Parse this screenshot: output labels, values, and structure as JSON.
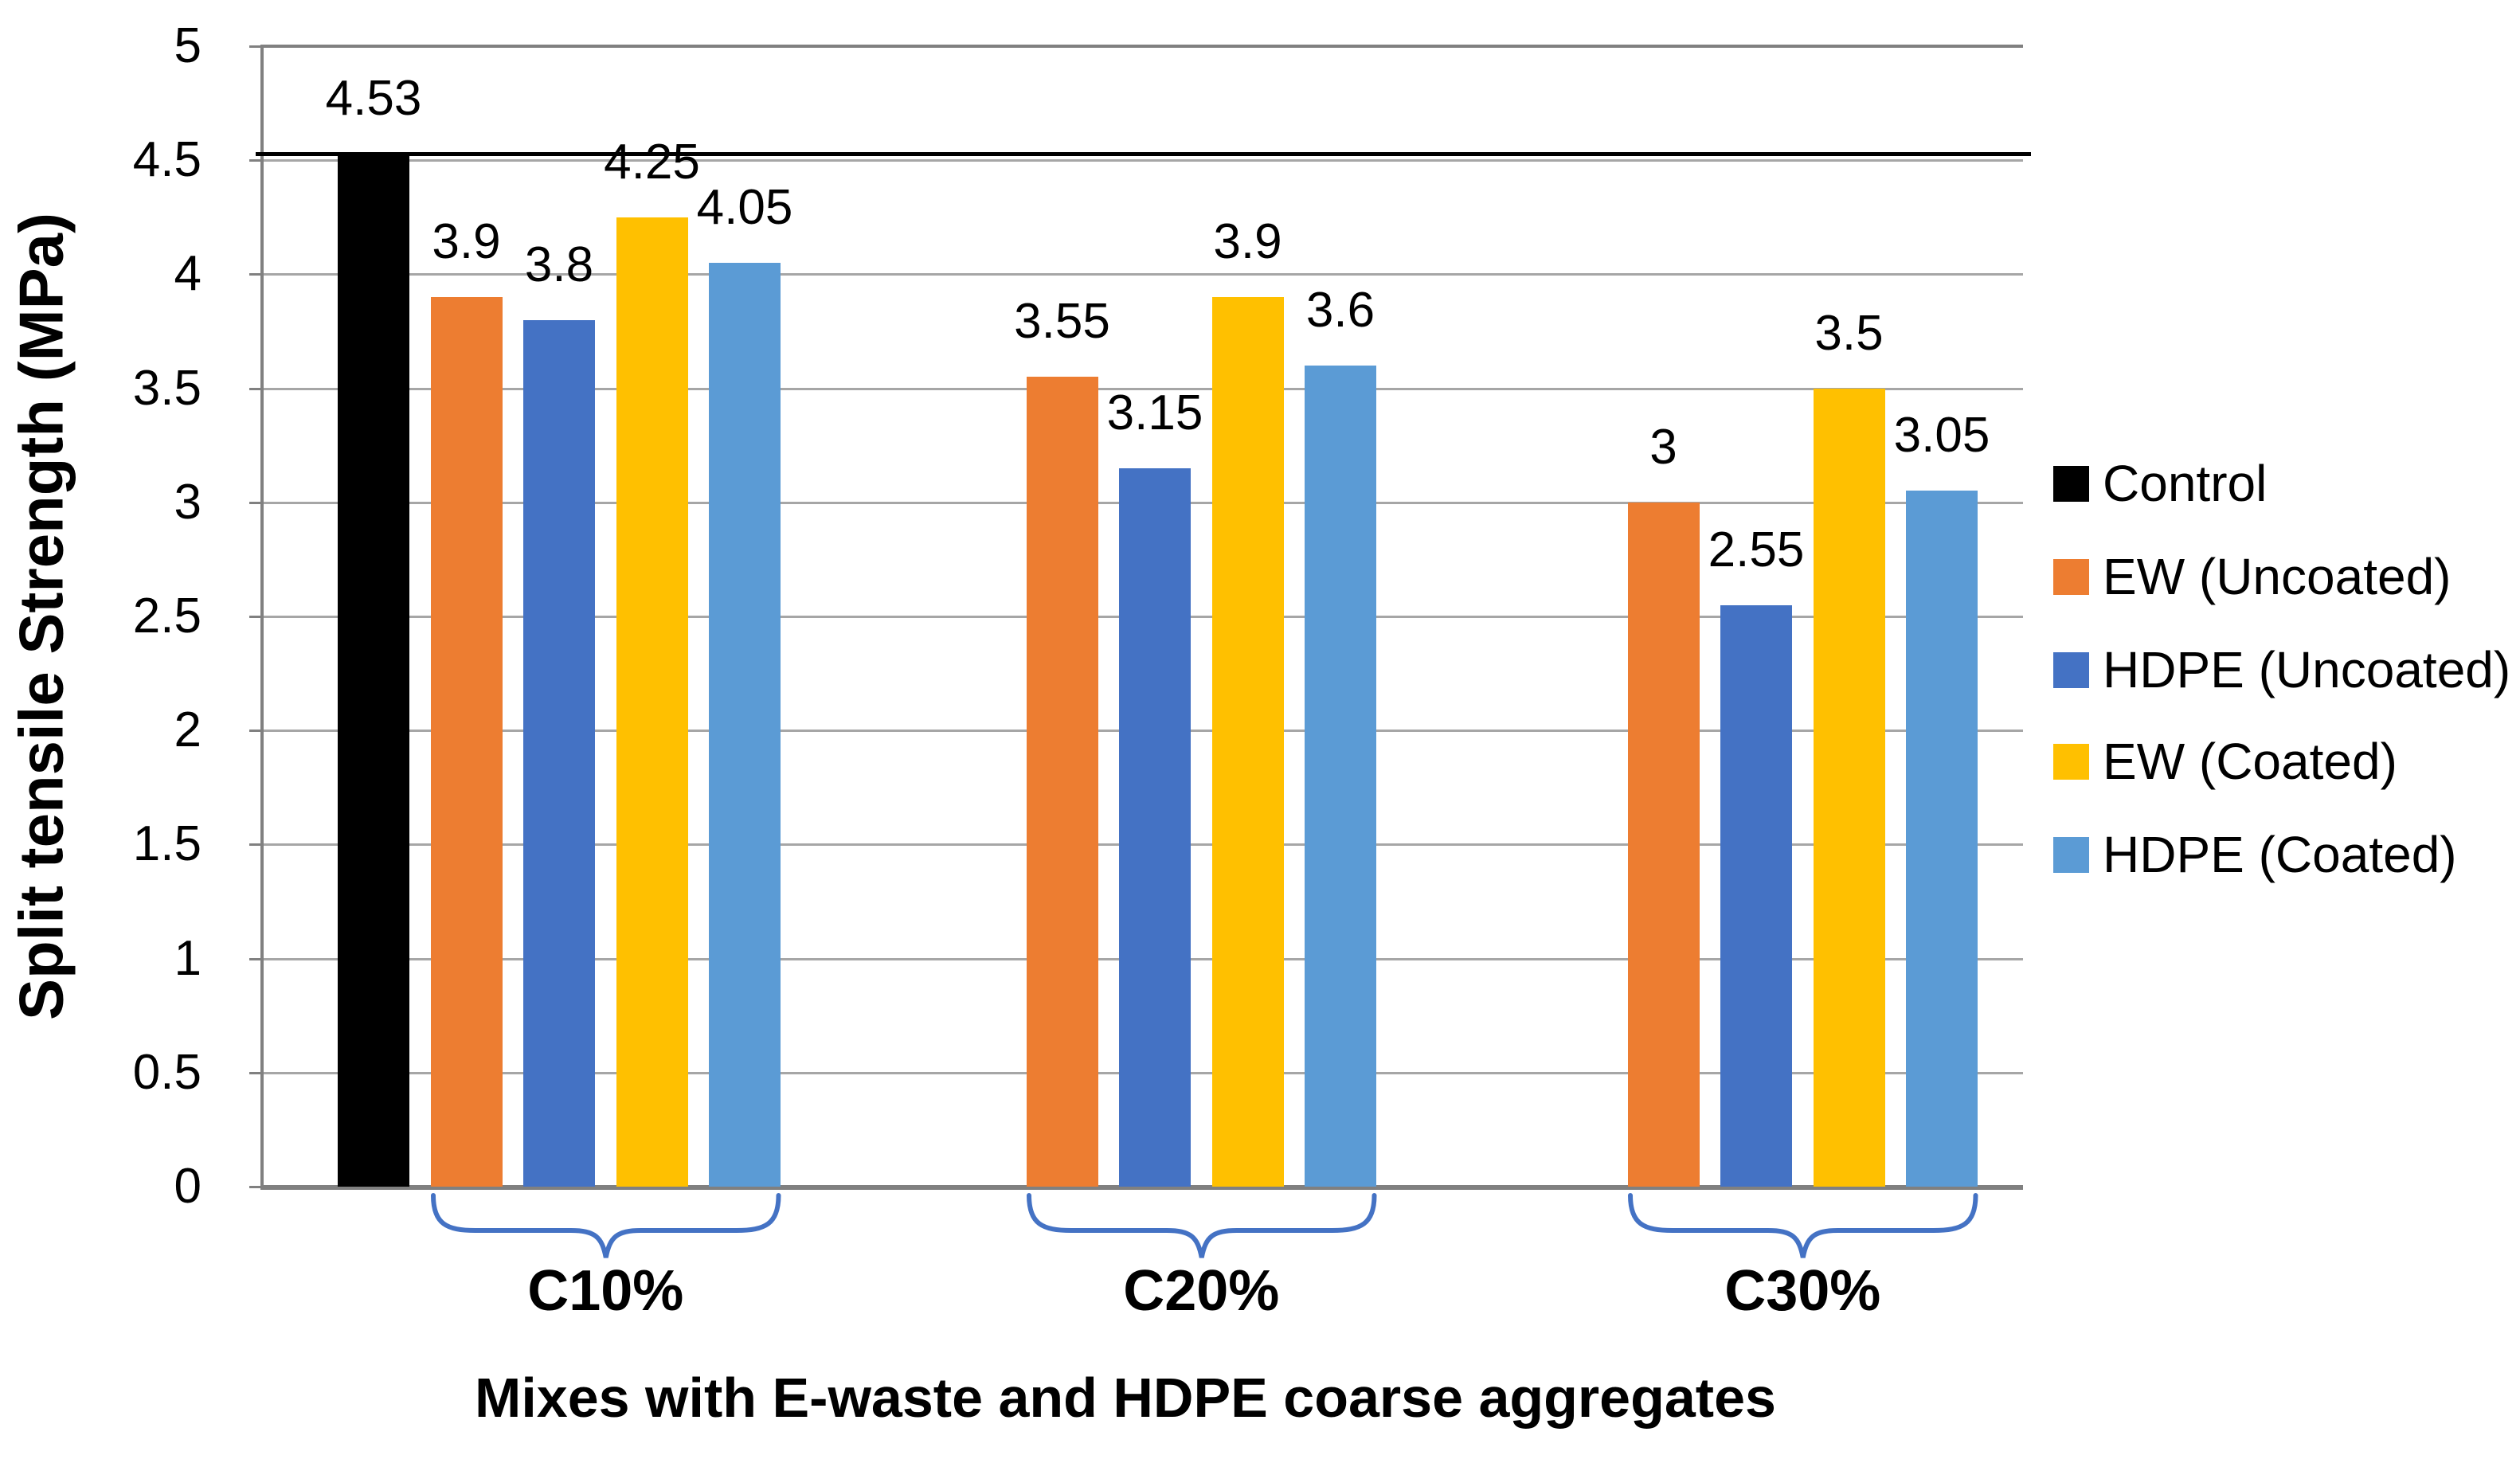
{
  "chart_data": {
    "type": "bar",
    "title": "",
    "ylabel": "Split tensile Strength (MPa)",
    "xlabel": "Mixes with E-waste and HDPE coarse aggregates",
    "ylim": [
      0,
      5
    ],
    "ytick_step": 0.5,
    "yticks": [
      "0",
      "0.5",
      "1",
      "1.5",
      "2",
      "2.5",
      "3",
      "3.5",
      "4",
      "4.5",
      "5"
    ],
    "grid": true,
    "legend_position": "right",
    "categories": [
      "C10%",
      "C20%",
      "C30%"
    ],
    "series": [
      {
        "name": "Control",
        "color": "#000000",
        "values": [
          4.53,
          null,
          null
        ],
        "labels": [
          "4.53",
          "",
          ""
        ]
      },
      {
        "name": "EW (Uncoated)",
        "color": "#ED7D31",
        "values": [
          3.9,
          3.55,
          3.0
        ],
        "labels": [
          "3.9",
          "3.55",
          "3"
        ]
      },
      {
        "name": "HDPE (Uncoated)",
        "color": "#4472C4",
        "values": [
          3.8,
          3.15,
          2.55
        ],
        "labels": [
          "3.8",
          "3.15",
          "2.55"
        ]
      },
      {
        "name": "EW (Coated)",
        "color": "#FFC000",
        "values": [
          4.25,
          3.9,
          3.5
        ],
        "labels": [
          "4.25",
          "3.9",
          "3.5"
        ]
      },
      {
        "name": "HDPE (Coated)",
        "color": "#5B9BD5",
        "values": [
          4.05,
          3.6,
          3.05
        ],
        "labels": [
          "4.05",
          "3.6",
          "3.05"
        ]
      }
    ],
    "reference_line": {
      "value": 4.53,
      "color": "#000000"
    },
    "brace_color": "#4472C4",
    "gridline_color": "#A6A6A6",
    "axis_line_color": "#808080",
    "text_color": "#000000"
  }
}
